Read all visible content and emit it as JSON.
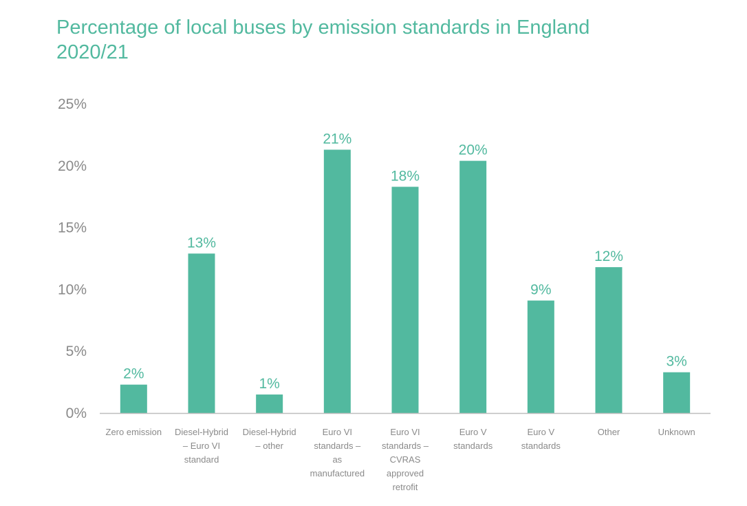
{
  "colors": {
    "accent": "#52b99f",
    "bar": "#52b99f",
    "axis": "#bdbdbd",
    "tick_text": "#8a8a8a"
  },
  "chart_data": {
    "type": "bar",
    "title": "Percentage of local buses by emission standards in England 2020/21",
    "xlabel": "",
    "ylabel": "",
    "ylim": [
      0,
      25
    ],
    "yticks": [
      0,
      5,
      10,
      15,
      20,
      25
    ],
    "ytick_labels": [
      "0%",
      "5%",
      "10%",
      "15%",
      "20%",
      "25%"
    ],
    "grid": false,
    "legend": "none",
    "categories": [
      [
        "Zero emission"
      ],
      [
        "Diesel-Hybrid",
        "– Euro VI",
        "standard"
      ],
      [
        "Diesel-Hybrid",
        "– other"
      ],
      [
        "Euro VI",
        "standards –",
        "as",
        "manufactured"
      ],
      [
        "Euro VI",
        "standards –",
        "CVRAS",
        "approved",
        "retrofit"
      ],
      [
        "Euro V",
        "standards"
      ],
      [
        "Euro V",
        "standards"
      ],
      [
        "Other"
      ],
      [
        "Unknown"
      ]
    ],
    "values": [
      2.3,
      12.9,
      1.5,
      21.3,
      18.3,
      20.4,
      9.1,
      11.8,
      3.3
    ],
    "data_labels": [
      "2%",
      "13%",
      "1%",
      "21%",
      "18%",
      "20%",
      "9%",
      "12%",
      "3%"
    ]
  }
}
